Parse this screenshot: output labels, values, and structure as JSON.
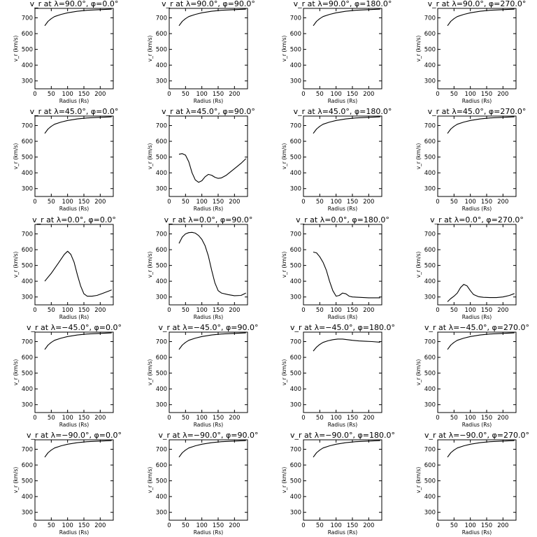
{
  "chart_data": [
    {
      "type": "line",
      "title": "v_r at λ=90.0°, φ=0.0°",
      "xlabel": "Radius (Rs)",
      "ylabel": "v_r (km/s)",
      "xlim": [
        0,
        240
      ],
      "ylim": [
        250,
        760
      ],
      "xticks": [
        0,
        50,
        100,
        150,
        200
      ],
      "yticks": [
        300,
        400,
        500,
        600,
        700
      ],
      "grid": false,
      "x": [
        30,
        40,
        50,
        60,
        80,
        100,
        130,
        160,
        200,
        235
      ],
      "y": [
        650,
        678,
        695,
        708,
        722,
        732,
        742,
        748,
        752,
        755
      ]
    },
    {
      "type": "line",
      "title": "v_r at λ=90.0°, φ=90.0°",
      "xlabel": "Radius (Rs)",
      "ylabel": "v_r (km/s)",
      "xlim": [
        0,
        240
      ],
      "ylim": [
        250,
        760
      ],
      "xticks": [
        0,
        50,
        100,
        150,
        200
      ],
      "yticks": [
        300,
        400,
        500,
        600,
        700
      ],
      "grid": false,
      "x": [
        30,
        40,
        50,
        60,
        80,
        100,
        130,
        160,
        200,
        235
      ],
      "y": [
        650,
        678,
        695,
        708,
        722,
        732,
        742,
        748,
        752,
        755
      ]
    },
    {
      "type": "line",
      "title": "v_r at λ=90.0°, φ=180.0°",
      "xlabel": "Radius (Rs)",
      "ylabel": "v_r (km/s)",
      "xlim": [
        0,
        240
      ],
      "ylim": [
        250,
        760
      ],
      "xticks": [
        0,
        50,
        100,
        150,
        200
      ],
      "yticks": [
        300,
        400,
        500,
        600,
        700
      ],
      "grid": false,
      "x": [
        30,
        40,
        50,
        60,
        80,
        100,
        130,
        160,
        200,
        235
      ],
      "y": [
        650,
        678,
        695,
        708,
        722,
        732,
        742,
        748,
        752,
        755
      ]
    },
    {
      "type": "line",
      "title": "v_r at λ=90.0°, φ=270.0°",
      "xlabel": "Radius (Rs)",
      "ylabel": "v_r (km/s)",
      "xlim": [
        0,
        240
      ],
      "ylim": [
        250,
        760
      ],
      "xticks": [
        0,
        50,
        100,
        150,
        200
      ],
      "yticks": [
        300,
        400,
        500,
        600,
        700
      ],
      "grid": false,
      "x": [
        30,
        40,
        50,
        60,
        80,
        100,
        130,
        160,
        200,
        235
      ],
      "y": [
        650,
        678,
        695,
        708,
        722,
        732,
        742,
        748,
        752,
        755
      ]
    },
    {
      "type": "line",
      "title": "v_r at λ=45.0°, φ=0.0°",
      "xlabel": "Radius (Rs)",
      "ylabel": "v_r (km/s)",
      "xlim": [
        0,
        240
      ],
      "ylim": [
        250,
        760
      ],
      "xticks": [
        0,
        50,
        100,
        150,
        200
      ],
      "yticks": [
        300,
        400,
        500,
        600,
        700
      ],
      "grid": false,
      "x": [
        30,
        40,
        50,
        60,
        80,
        100,
        130,
        160,
        200,
        235
      ],
      "y": [
        650,
        678,
        695,
        708,
        722,
        732,
        742,
        748,
        752,
        755
      ]
    },
    {
      "type": "line",
      "title": "v_r at λ=45.0°, φ=90.0°",
      "xlabel": "Radius (Rs)",
      "ylabel": "v_r (km/s)",
      "xlim": [
        0,
        240
      ],
      "ylim": [
        250,
        760
      ],
      "xticks": [
        0,
        50,
        100,
        150,
        200
      ],
      "yticks": [
        300,
        400,
        500,
        600,
        700
      ],
      "grid": false,
      "x": [
        30,
        40,
        50,
        60,
        70,
        80,
        90,
        100,
        110,
        120,
        130,
        140,
        150,
        160,
        175,
        190,
        205,
        220,
        235
      ],
      "y": [
        518,
        522,
        512,
        470,
        400,
        355,
        340,
        350,
        375,
        390,
        385,
        372,
        365,
        368,
        385,
        410,
        435,
        460,
        490
      ]
    },
    {
      "type": "line",
      "title": "v_r at λ=45.0°, φ=180.0°",
      "xlabel": "Radius (Rs)",
      "ylabel": "v_r (km/s)",
      "xlim": [
        0,
        240
      ],
      "ylim": [
        250,
        760
      ],
      "xticks": [
        0,
        50,
        100,
        150,
        200
      ],
      "yticks": [
        300,
        400,
        500,
        600,
        700
      ],
      "grid": false,
      "x": [
        30,
        40,
        50,
        60,
        80,
        100,
        130,
        160,
        200,
        235
      ],
      "y": [
        650,
        678,
        695,
        708,
        722,
        732,
        742,
        748,
        752,
        755
      ]
    },
    {
      "type": "line",
      "title": "v_r at λ=45.0°, φ=270.0°",
      "xlabel": "Radius (Rs)",
      "ylabel": "v_r (km/s)",
      "xlim": [
        0,
        240
      ],
      "ylim": [
        250,
        760
      ],
      "xticks": [
        0,
        50,
        100,
        150,
        200
      ],
      "yticks": [
        300,
        400,
        500,
        600,
        700
      ],
      "grid": false,
      "x": [
        30,
        40,
        50,
        60,
        80,
        100,
        130,
        160,
        200,
        235
      ],
      "y": [
        650,
        678,
        695,
        708,
        722,
        732,
        742,
        748,
        752,
        755
      ]
    },
    {
      "type": "line",
      "title": "v_r at λ=0.0°, φ=0.0°",
      "xlabel": "Radius (Rs)",
      "ylabel": "v_r (km/s)",
      "xlim": [
        0,
        240
      ],
      "ylim": [
        250,
        760
      ],
      "xticks": [
        0,
        50,
        100,
        150,
        200
      ],
      "yticks": [
        300,
        400,
        500,
        600,
        700
      ],
      "grid": false,
      "x": [
        30,
        50,
        70,
        90,
        100,
        110,
        120,
        130,
        140,
        150,
        160,
        175,
        190,
        210,
        235
      ],
      "y": [
        400,
        450,
        510,
        570,
        590,
        570,
        520,
        440,
        370,
        320,
        305,
        305,
        310,
        325,
        345
      ]
    },
    {
      "type": "line",
      "title": "v_r at λ=0.0°, φ=90.0°",
      "xlabel": "Radius (Rs)",
      "ylabel": "v_r (km/s)",
      "xlim": [
        0,
        240
      ],
      "ylim": [
        250,
        760
      ],
      "xticks": [
        0,
        50,
        100,
        150,
        200
      ],
      "yticks": [
        300,
        400,
        500,
        600,
        700
      ],
      "grid": false,
      "x": [
        30,
        40,
        50,
        60,
        70,
        80,
        90,
        100,
        110,
        120,
        130,
        140,
        150,
        160,
        180,
        200,
        220,
        235
      ],
      "y": [
        640,
        680,
        700,
        708,
        710,
        705,
        690,
        665,
        625,
        560,
        470,
        390,
        340,
        325,
        315,
        308,
        310,
        325
      ]
    },
    {
      "type": "line",
      "title": "v_r at λ=0.0°, φ=180.0°",
      "xlabel": "Radius (Rs)",
      "ylabel": "v_r (km/s)",
      "xlim": [
        0,
        240
      ],
      "ylim": [
        250,
        760
      ],
      "xticks": [
        0,
        50,
        100,
        150,
        200
      ],
      "yticks": [
        300,
        400,
        500,
        600,
        700
      ],
      "grid": false,
      "x": [
        30,
        40,
        50,
        60,
        70,
        80,
        90,
        100,
        110,
        120,
        130,
        140,
        150,
        170,
        200,
        235
      ],
      "y": [
        585,
        580,
        555,
        520,
        470,
        400,
        340,
        305,
        310,
        325,
        320,
        305,
        300,
        298,
        295,
        295
      ]
    },
    {
      "type": "line",
      "title": "v_r at λ=0.0°, φ=270.0°",
      "xlabel": "Radius (Rs)",
      "ylabel": "v_r (km/s)",
      "xlim": [
        0,
        240
      ],
      "ylim": [
        250,
        760
      ],
      "xticks": [
        0,
        50,
        100,
        150,
        200
      ],
      "yticks": [
        300,
        400,
        500,
        600,
        700
      ],
      "grid": false,
      "x": [
        30,
        40,
        50,
        60,
        70,
        80,
        90,
        100,
        110,
        125,
        140,
        160,
        180,
        200,
        220,
        235
      ],
      "y": [
        270,
        290,
        305,
        325,
        360,
        380,
        370,
        340,
        315,
        302,
        298,
        296,
        296,
        300,
        310,
        322
      ]
    },
    {
      "type": "line",
      "title": "v_r at λ=−45.0°, φ=0.0°",
      "xlabel": "Radius (Rs)",
      "ylabel": "v_r (km/s)",
      "xlim": [
        0,
        240
      ],
      "ylim": [
        250,
        760
      ],
      "xticks": [
        0,
        50,
        100,
        150,
        200
      ],
      "yticks": [
        300,
        400,
        500,
        600,
        700
      ],
      "grid": false,
      "x": [
        30,
        40,
        50,
        60,
        80,
        100,
        130,
        160,
        200,
        235
      ],
      "y": [
        650,
        678,
        695,
        708,
        722,
        732,
        742,
        748,
        752,
        755
      ]
    },
    {
      "type": "line",
      "title": "v_r at λ=−45.0°, φ=90.0°",
      "xlabel": "Radius (Rs)",
      "ylabel": "v_r (km/s)",
      "xlim": [
        0,
        240
      ],
      "ylim": [
        250,
        760
      ],
      "xticks": [
        0,
        50,
        100,
        150,
        200
      ],
      "yticks": [
        300,
        400,
        500,
        600,
        700
      ],
      "grid": false,
      "x": [
        30,
        40,
        50,
        60,
        80,
        100,
        130,
        160,
        200,
        235
      ],
      "y": [
        650,
        678,
        695,
        708,
        722,
        732,
        742,
        748,
        752,
        755
      ]
    },
    {
      "type": "line",
      "title": "v_r at λ=−45.0°, φ=180.0°",
      "xlabel": "Radius (Rs)",
      "ylabel": "v_r (km/s)",
      "xlim": [
        0,
        240
      ],
      "ylim": [
        250,
        760
      ],
      "xticks": [
        0,
        50,
        100,
        150,
        200
      ],
      "yticks": [
        300,
        400,
        500,
        600,
        700
      ],
      "grid": false,
      "x": [
        30,
        40,
        50,
        60,
        75,
        90,
        105,
        120,
        135,
        150,
        170,
        190,
        210,
        235
      ],
      "y": [
        640,
        665,
        682,
        695,
        705,
        712,
        716,
        716,
        712,
        708,
        704,
        702,
        700,
        696
      ]
    },
    {
      "type": "line",
      "title": "v_r at λ=−45.0°, φ=270.0°",
      "xlabel": "Radius (Rs)",
      "ylabel": "v_r (km/s)",
      "xlim": [
        0,
        240
      ],
      "ylim": [
        250,
        760
      ],
      "xticks": [
        0,
        50,
        100,
        150,
        200
      ],
      "yticks": [
        300,
        400,
        500,
        600,
        700
      ],
      "grid": false,
      "x": [
        30,
        40,
        50,
        60,
        80,
        100,
        130,
        160,
        200,
        235
      ],
      "y": [
        650,
        678,
        695,
        708,
        722,
        732,
        742,
        748,
        752,
        755
      ]
    },
    {
      "type": "line",
      "title": "v_r at λ=−90.0°, φ=0.0°",
      "xlabel": "Radius (Rs)",
      "ylabel": "v_r (km/s)",
      "xlim": [
        0,
        240
      ],
      "ylim": [
        250,
        760
      ],
      "xticks": [
        0,
        50,
        100,
        150,
        200
      ],
      "yticks": [
        300,
        400,
        500,
        600,
        700
      ],
      "grid": false,
      "x": [
        30,
        40,
        50,
        60,
        80,
        100,
        130,
        160,
        200,
        235
      ],
      "y": [
        650,
        678,
        695,
        708,
        722,
        732,
        742,
        748,
        752,
        755
      ]
    },
    {
      "type": "line",
      "title": "v_r at λ=−90.0°, φ=90.0°",
      "xlabel": "Radius (Rs)",
      "ylabel": "v_r (km/s)",
      "xlim": [
        0,
        240
      ],
      "ylim": [
        250,
        760
      ],
      "xticks": [
        0,
        50,
        100,
        150,
        200
      ],
      "yticks": [
        300,
        400,
        500,
        600,
        700
      ],
      "grid": false,
      "x": [
        30,
        40,
        50,
        60,
        80,
        100,
        130,
        160,
        200,
        235
      ],
      "y": [
        650,
        678,
        695,
        708,
        722,
        732,
        742,
        748,
        752,
        755
      ]
    },
    {
      "type": "line",
      "title": "v_r at λ=−90.0°, φ=180.0°",
      "xlabel": "Radius (Rs)",
      "ylabel": "v_r (km/s)",
      "xlim": [
        0,
        240
      ],
      "ylim": [
        250,
        760
      ],
      "xticks": [
        0,
        50,
        100,
        150,
        200
      ],
      "yticks": [
        300,
        400,
        500,
        600,
        700
      ],
      "grid": false,
      "x": [
        30,
        40,
        50,
        60,
        80,
        100,
        130,
        160,
        200,
        235
      ],
      "y": [
        650,
        678,
        695,
        708,
        722,
        732,
        742,
        748,
        752,
        755
      ]
    },
    {
      "type": "line",
      "title": "v_r at λ=−90.0°, φ=270.0°",
      "xlabel": "Radius (Rs)",
      "ylabel": "v_r (km/s)",
      "xlim": [
        0,
        240
      ],
      "ylim": [
        250,
        760
      ],
      "xticks": [
        0,
        50,
        100,
        150,
        200
      ],
      "yticks": [
        300,
        400,
        500,
        600,
        700
      ],
      "grid": false,
      "x": [
        30,
        40,
        50,
        60,
        80,
        100,
        130,
        160,
        200,
        235
      ],
      "y": [
        650,
        678,
        695,
        708,
        722,
        732,
        742,
        748,
        752,
        755
      ]
    }
  ]
}
